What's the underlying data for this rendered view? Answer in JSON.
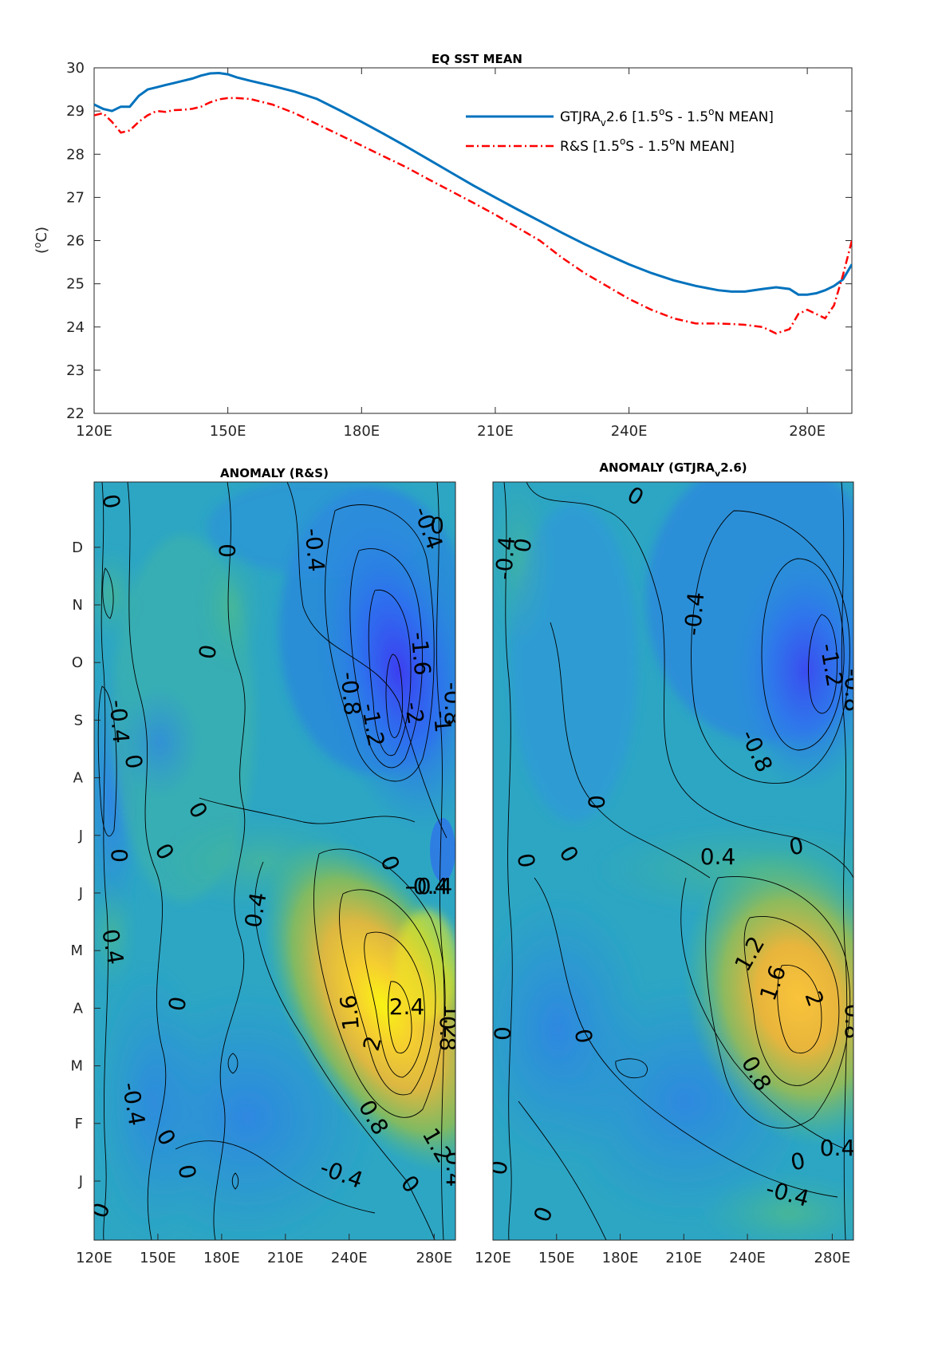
{
  "chart_data": [
    {
      "type": "line",
      "title": "EQ SST MEAN",
      "xlabel": "",
      "ylabel": "(°C)",
      "ylabel_unit": "C",
      "xlim": [
        120,
        290
      ],
      "ylim": [
        22,
        30
      ],
      "x_ticks": [
        120,
        150,
        180,
        210,
        240,
        280
      ],
      "x_tick_labels": [
        "120E",
        "150E",
        "180E",
        "210E",
        "240E",
        "280E"
      ],
      "y_ticks": [
        22,
        23,
        24,
        25,
        26,
        27,
        28,
        29,
        30
      ],
      "legend_position": "top-right",
      "series": [
        {
          "name": "GTJRA_v2.6 [1.5°S - 1.5°N MEAN]",
          "legend_parts": {
            "a": "GTJRA",
            "b": "v",
            "c": "2.6 [1.5",
            "d": "o",
            "e": "S - 1.5",
            "f": "o",
            "g": "N MEAN]"
          },
          "color": "#0072BD",
          "style": "solid",
          "x": [
            120,
            122,
            124,
            126,
            128,
            130,
            132,
            134,
            136,
            138,
            140,
            142,
            144,
            146,
            148,
            150,
            152,
            155,
            160,
            165,
            170,
            175,
            180,
            185,
            190,
            195,
            200,
            205,
            210,
            215,
            220,
            225,
            230,
            235,
            240,
            245,
            250,
            255,
            260,
            263,
            266,
            270,
            273,
            276,
            278,
            280,
            282,
            284,
            286,
            288,
            290
          ],
          "y": [
            29.15,
            29.05,
            29.0,
            29.1,
            29.1,
            29.35,
            29.5,
            29.55,
            29.6,
            29.65,
            29.7,
            29.75,
            29.82,
            29.87,
            29.88,
            29.85,
            29.78,
            29.7,
            29.58,
            29.45,
            29.28,
            29.02,
            28.75,
            28.47,
            28.18,
            27.88,
            27.58,
            27.28,
            27.0,
            26.72,
            26.45,
            26.18,
            25.92,
            25.68,
            25.45,
            25.25,
            25.08,
            24.95,
            24.85,
            24.82,
            24.82,
            24.88,
            24.92,
            24.88,
            24.75,
            24.75,
            24.78,
            24.85,
            24.95,
            25.1,
            25.45
          ]
        },
        {
          "name": "R&S [1.5°S - 1.5°N MEAN]",
          "legend_parts": {
            "a": "R&S [1.5",
            "b": "o",
            "c": "S - 1.5",
            "d": "o",
            "e": "N MEAN]"
          },
          "color": "#FF0000",
          "style": "dashdot",
          "x": [
            120,
            122,
            124,
            126,
            128,
            130,
            132,
            134,
            136,
            138,
            140,
            142,
            144,
            146,
            148,
            150,
            152,
            155,
            160,
            165,
            170,
            175,
            180,
            185,
            190,
            195,
            200,
            205,
            210,
            215,
            220,
            225,
            230,
            235,
            240,
            245,
            250,
            255,
            260,
            263,
            266,
            270,
            273,
            276,
            278,
            280,
            282,
            284,
            286,
            288,
            290
          ],
          "y": [
            28.9,
            28.95,
            28.75,
            28.5,
            28.55,
            28.75,
            28.9,
            29.0,
            28.98,
            29.02,
            29.03,
            29.05,
            29.1,
            29.2,
            29.27,
            29.3,
            29.3,
            29.28,
            29.15,
            28.95,
            28.7,
            28.45,
            28.2,
            27.95,
            27.7,
            27.42,
            27.15,
            26.88,
            26.6,
            26.3,
            26.0,
            25.6,
            25.25,
            24.95,
            24.65,
            24.4,
            24.2,
            24.08,
            24.08,
            24.07,
            24.05,
            24.0,
            23.85,
            23.95,
            24.3,
            24.4,
            24.3,
            24.2,
            24.5,
            25.2,
            26.0
          ]
        }
      ]
    },
    {
      "type": "heatmap",
      "title": "ANOMALY (R&S)",
      "xlim": [
        120,
        290
      ],
      "x_ticks": [
        120,
        150,
        180,
        210,
        240,
        280
      ],
      "x_tick_labels": [
        "120E",
        "150E",
        "180E",
        "210E",
        "240E",
        "280E"
      ],
      "y_tick_labels": [
        "J",
        "F",
        "M",
        "A",
        "M",
        "J",
        "J",
        "A",
        "S",
        "O",
        "N",
        "D"
      ],
      "colormap": "parula",
      "contour_labels": [
        "0",
        "-0.4",
        "0",
        "-0.4",
        "0",
        "0",
        "-0.4",
        "-1.6",
        "-2",
        "-0.8",
        "-1.2",
        "-1",
        "-0.8",
        "-0.4",
        "0",
        "0",
        "0",
        "0",
        "0",
        "-0.4",
        "0.4",
        "0.4",
        "1.6",
        "2.4",
        "1.2",
        "2",
        "0.8",
        "0",
        "0.8",
        "1.2",
        "-0.4",
        "-0.4",
        "0",
        "0",
        "0",
        "0.4",
        "0"
      ]
    },
    {
      "type": "heatmap",
      "title": "ANOMALY (GTJRA_v2.6)",
      "title_parts": {
        "a": "ANOMALY (GTJRA",
        "b": "v",
        "c": "2.6)"
      },
      "xlim": [
        120,
        290
      ],
      "x_ticks": [
        120,
        150,
        180,
        210,
        240,
        280
      ],
      "x_tick_labels": [
        "120E",
        "150E",
        "180E",
        "210E",
        "240E",
        "280E"
      ],
      "colormap": "parula",
      "contour_labels": [
        "0",
        "-0.4",
        "0",
        "-0.4",
        "-1.2",
        "-0.8",
        "-0.8",
        "0",
        "0",
        "0.4",
        "0",
        "0",
        "1.2",
        "1.6",
        "2",
        "0.8",
        "0.8",
        "0",
        "0.4",
        "0",
        "-0.4",
        "0",
        "0"
      ]
    }
  ]
}
